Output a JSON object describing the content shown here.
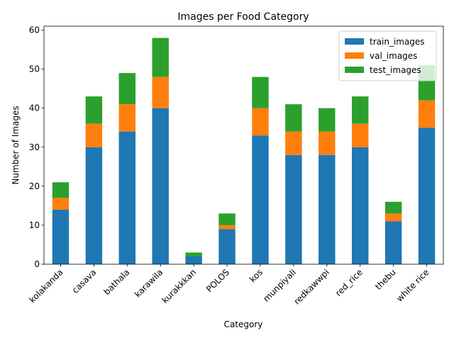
{
  "chart_data": {
    "type": "bar",
    "stacked": true,
    "title": "Images per Food Category",
    "xlabel": "Category",
    "ylabel": "Number of Images",
    "ylim": [
      0,
      61
    ],
    "yticks": [
      0,
      10,
      20,
      30,
      40,
      50,
      60
    ],
    "grid": false,
    "legend_position": "top-right",
    "categories": [
      "kolakanda",
      "casava",
      "bathala",
      "karawila",
      "kurakkkan",
      "POLOS",
      "kos",
      "munpiyali",
      "redkawwpi",
      "red_rice",
      "thebu",
      "white rice"
    ],
    "series": [
      {
        "name": "train_images",
        "color": "#1f77b4",
        "values": [
          14,
          30,
          34,
          40,
          2,
          9,
          33,
          28,
          28,
          30,
          11,
          35
        ]
      },
      {
        "name": "val_images",
        "color": "#ff7f0e",
        "values": [
          3,
          6,
          7,
          8,
          0,
          1,
          7,
          6,
          6,
          6,
          2,
          7
        ]
      },
      {
        "name": "test_images",
        "color": "#2ca02c",
        "values": [
          4,
          7,
          8,
          10,
          1,
          3,
          8,
          7,
          6,
          7,
          3,
          9
        ]
      }
    ]
  }
}
